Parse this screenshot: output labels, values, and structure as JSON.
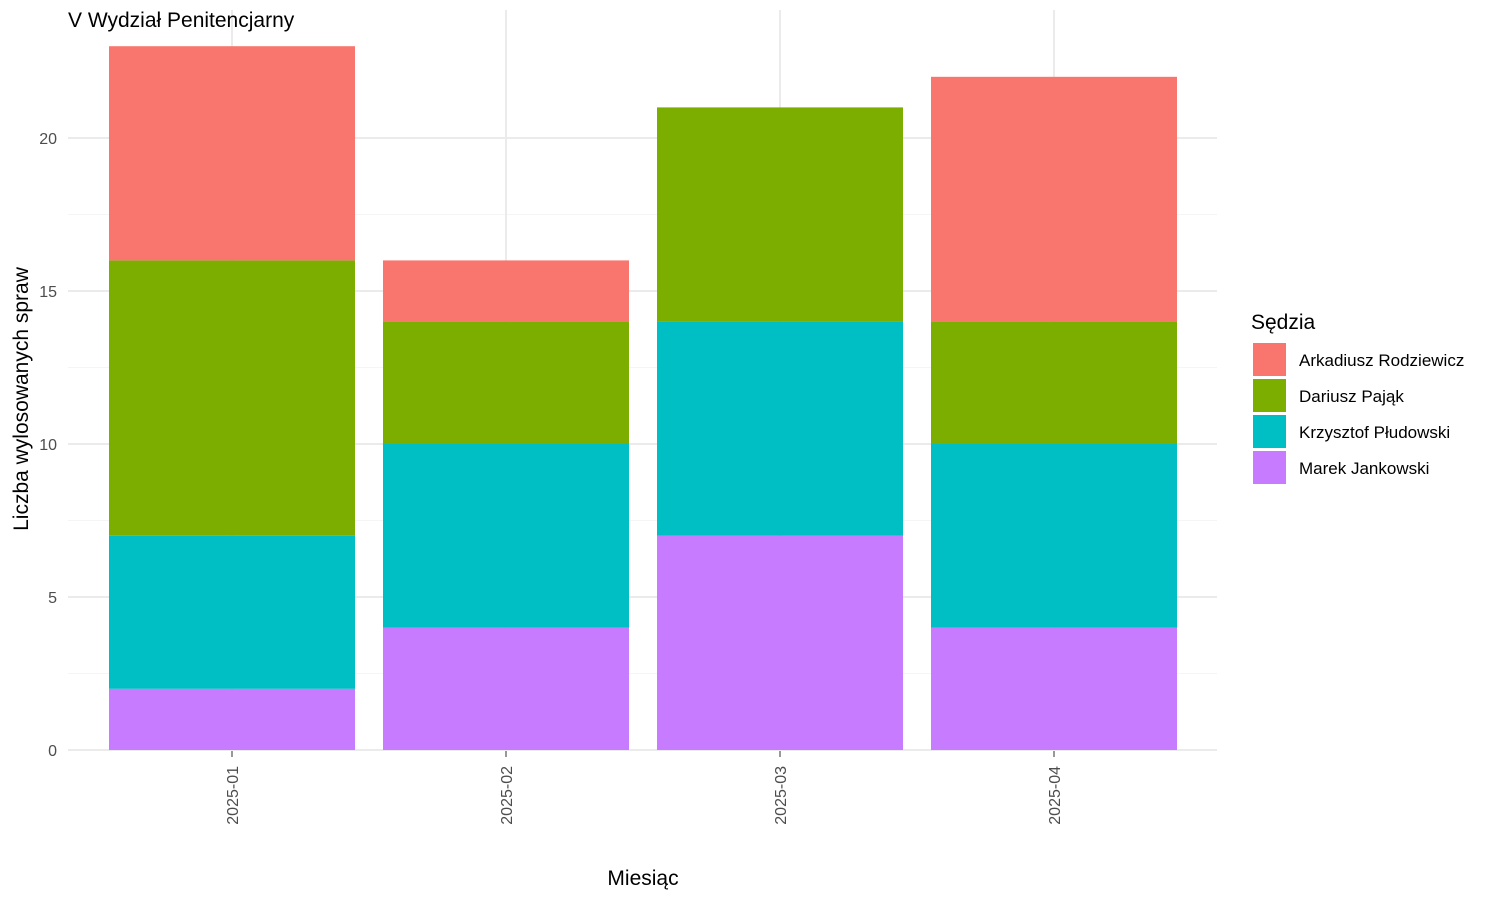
{
  "chart_data": {
    "type": "bar",
    "stacked": true,
    "title": "V Wydział Penitencjarny",
    "xlabel": "Miesiąc",
    "ylabel": "Liczba wylosowanych spraw",
    "categories": [
      "2025-01",
      "2025-02",
      "2025-03",
      "2025-04"
    ],
    "ylim": [
      0,
      23
    ],
    "yticks": [
      0,
      5,
      10,
      15,
      20
    ],
    "grid": true,
    "legend": {
      "title": "Sędzia",
      "placement": "right"
    },
    "series": [
      {
        "name": "Marek Jankowski",
        "color": "#C77CFF",
        "values": [
          2,
          4,
          7,
          4
        ]
      },
      {
        "name": "Krzysztof Płudowski",
        "color": "#00BFC4",
        "values": [
          5,
          6,
          7,
          6
        ]
      },
      {
        "name": "Dariusz Pająk",
        "color": "#7CAE00",
        "values": [
          9,
          4,
          7,
          4
        ]
      },
      {
        "name": "Arkadiusz Rodziewicz",
        "color": "#F8766D",
        "values": [
          7,
          2,
          0,
          8
        ]
      }
    ],
    "legend_order": [
      "Arkadiusz Rodziewicz",
      "Dariusz Pająk",
      "Krzysztof Płudowski",
      "Marek Jankowski"
    ]
  }
}
